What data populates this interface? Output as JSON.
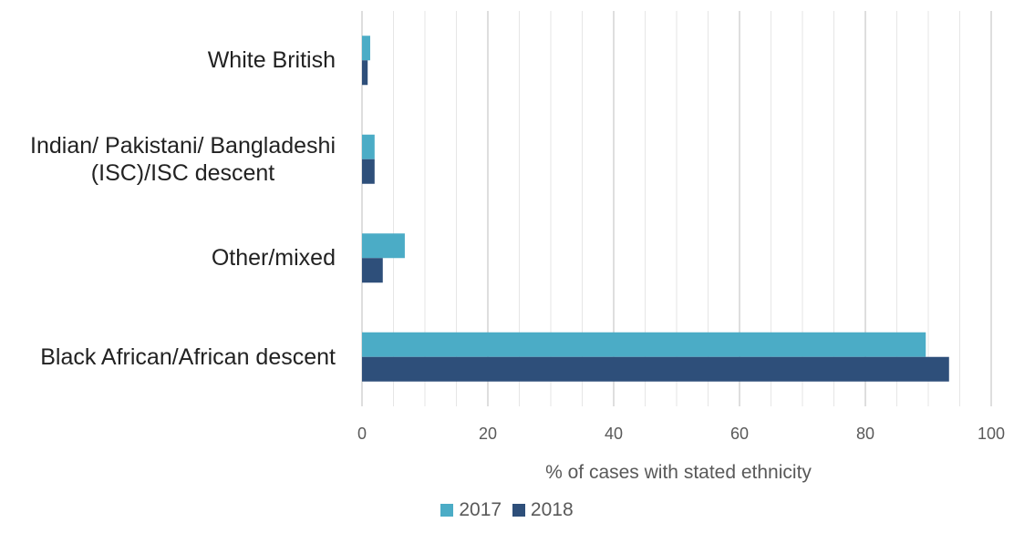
{
  "chart_data": {
    "type": "bar",
    "orientation": "horizontal",
    "categories": [
      "White British",
      "Indian/ Pakistani/ Bangladeshi (ISC)/ISC descent",
      "Other/mixed",
      "Black African/African descent"
    ],
    "category_label_lines": [
      [
        "White British"
      ],
      [
        "Indian/ Pakistani/ Bangladeshi",
        "(ISC)/ISC descent"
      ],
      [
        "Other/mixed"
      ],
      [
        "Black African/African descent"
      ]
    ],
    "series": [
      {
        "name": "2017",
        "color": "#4BACC6",
        "values": [
          1.3,
          2.0,
          6.8,
          89.6
        ]
      },
      {
        "name": "2018",
        "color": "#2E4F7A",
        "values": [
          0.9,
          2.0,
          3.3,
          93.3
        ]
      }
    ],
    "xlabel": "% of cases with stated ethnicity",
    "xlim": [
      0,
      100
    ],
    "xticks": [
      0,
      20,
      40,
      60,
      80,
      100
    ],
    "grid": true,
    "legend": {
      "placement": "bottom",
      "entries": [
        "2017",
        "2018"
      ]
    }
  }
}
